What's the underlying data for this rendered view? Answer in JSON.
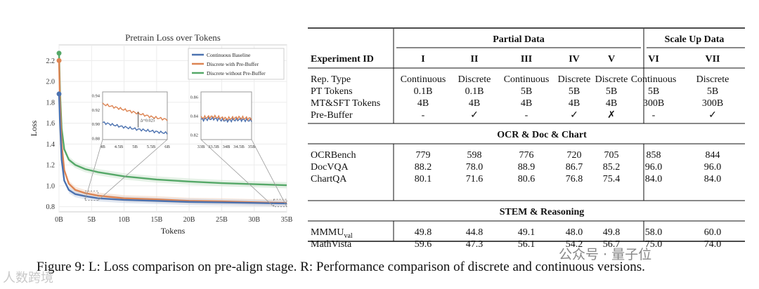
{
  "chart_data": {
    "type": "line",
    "title": "Pretrain Loss over Tokens",
    "xlabel": "Tokens",
    "ylabel": "Loss",
    "xlim": [
      0,
      35
    ],
    "ylim": [
      0.75,
      2.35
    ],
    "x_ticks": [
      "0B",
      "5B",
      "10B",
      "15B",
      "20B",
      "25B",
      "30B",
      "35B"
    ],
    "y_ticks": [
      "0.8",
      "1.0",
      "1.2",
      "1.4",
      "1.6",
      "1.8",
      "2.0",
      "2.2"
    ],
    "series": [
      {
        "name": "Continuous Baseline",
        "color": "#4c72b0",
        "x": [
          0,
          0.15,
          0.4,
          0.8,
          1.5,
          2.5,
          4,
          6,
          10,
          15,
          20,
          25,
          30,
          35
        ],
        "y": [
          1.88,
          1.6,
          1.25,
          1.05,
          0.96,
          0.92,
          0.9,
          0.88,
          0.865,
          0.855,
          0.845,
          0.84,
          0.835,
          0.83
        ]
      },
      {
        "name": "Discrete with Pre-Buffer",
        "color": "#dd8452",
        "x": [
          0,
          0.15,
          0.4,
          0.8,
          1.5,
          2.5,
          4,
          6,
          10,
          15,
          20,
          25,
          30,
          35
        ],
        "y": [
          2.2,
          1.8,
          1.4,
          1.15,
          1.02,
          0.96,
          0.93,
          0.905,
          0.88,
          0.87,
          0.855,
          0.85,
          0.842,
          0.835
        ]
      },
      {
        "name": "Discrete without Pre-Buffer",
        "color": "#55a868",
        "x": [
          0,
          0.15,
          0.4,
          0.8,
          1.5,
          2.5,
          4,
          6,
          10,
          15,
          20,
          25,
          30,
          35
        ],
        "y": [
          2.27,
          1.9,
          1.55,
          1.35,
          1.25,
          1.2,
          1.16,
          1.13,
          1.09,
          1.06,
          1.04,
          1.025,
          1.015,
          1.005
        ]
      }
    ],
    "inset_left": {
      "x_ticks": [
        "4B",
        "4.5B",
        "5B",
        "5.5B",
        "6B"
      ],
      "y_ticks": [
        "0.94",
        "0.92",
        "0.90",
        "0.88"
      ],
      "annotation": "Δ=0.025",
      "series": [
        {
          "name": "Continuous Baseline",
          "x": [
            4,
            4.5,
            5,
            5.5,
            6
          ],
          "y": [
            0.902,
            0.897,
            0.893,
            0.89,
            0.887
          ]
        },
        {
          "name": "Discrete with Pre-Buffer",
          "x": [
            4,
            4.5,
            5,
            5.5,
            6
          ],
          "y": [
            0.928,
            0.922,
            0.916,
            0.91,
            0.906
          ]
        }
      ]
    },
    "inset_right": {
      "x_ticks": [
        "33B",
        "33.5B",
        "34B",
        "34.5B",
        "35B"
      ],
      "y_ticks": [
        "0.86",
        "0.84",
        "0.82"
      ],
      "series": [
        {
          "name": "Continuous Baseline",
          "x": [
            33,
            33.5,
            34,
            34.5,
            35
          ],
          "y": [
            0.836,
            0.837,
            0.835,
            0.836,
            0.835
          ]
        },
        {
          "name": "Discrete with Pre-Buffer",
          "x": [
            33,
            33.5,
            34,
            34.5,
            35
          ],
          "y": [
            0.838,
            0.839,
            0.837,
            0.838,
            0.837
          ]
        }
      ]
    }
  },
  "table": {
    "group_headers": {
      "partial": "Partial Data",
      "scale": "Scale Up Data"
    },
    "id_label": "Experiment ID",
    "ids": [
      "I",
      "II",
      "III",
      "IV",
      "V",
      "VI",
      "VII"
    ],
    "settings": [
      {
        "label": "Rep. Type",
        "values": [
          "Continuous",
          "Discrete",
          "Continuous",
          "Discrete",
          "Discrete",
          "Continuous",
          "Discrete"
        ]
      },
      {
        "label": "PT Tokens",
        "values": [
          "0.1B",
          "0.1B",
          "5B",
          "5B",
          "5B",
          "5B",
          "5B"
        ]
      },
      {
        "label": "MT&SFT Tokens",
        "values": [
          "4B",
          "4B",
          "4B",
          "4B",
          "4B",
          "300B",
          "300B"
        ]
      },
      {
        "label": "Pre-Buffer",
        "values": [
          "-",
          "✓",
          "-",
          "✓",
          "✗",
          "-",
          "✓"
        ]
      }
    ],
    "sections": [
      {
        "title": "OCR & Doc & Chart",
        "rows": [
          {
            "label": "OCRBench",
            "values": [
              "779",
              "598",
              "776",
              "720",
              "705",
              "858",
              "844"
            ]
          },
          {
            "label": "DocVQA",
            "values": [
              "88.2",
              "78.0",
              "88.9",
              "86.7",
              "85.2",
              "96.0",
              "96.0"
            ]
          },
          {
            "label": "ChartQA",
            "values": [
              "80.1",
              "71.6",
              "80.6",
              "76.8",
              "75.4",
              "84.0",
              "84.0"
            ]
          }
        ]
      },
      {
        "title": "STEM & Reasoning",
        "rows": [
          {
            "label": "MMMU",
            "label_sub": "val",
            "values": [
              "49.8",
              "44.8",
              "49.1",
              "48.0",
              "49.8",
              "58.0",
              "60.0"
            ]
          },
          {
            "label": "MathVista",
            "values": [
              "59.6",
              "47.3",
              "56.1",
              "54.2",
              "56.7",
              "75.0",
              "74.0"
            ]
          }
        ]
      }
    ]
  },
  "caption": "Figure 9: L: Loss comparison on pre-align stage. R: Performance comparison of discrete and continuous versions.",
  "watermark_right": "公众号 · 量子位",
  "watermark_left": "人数跨境"
}
